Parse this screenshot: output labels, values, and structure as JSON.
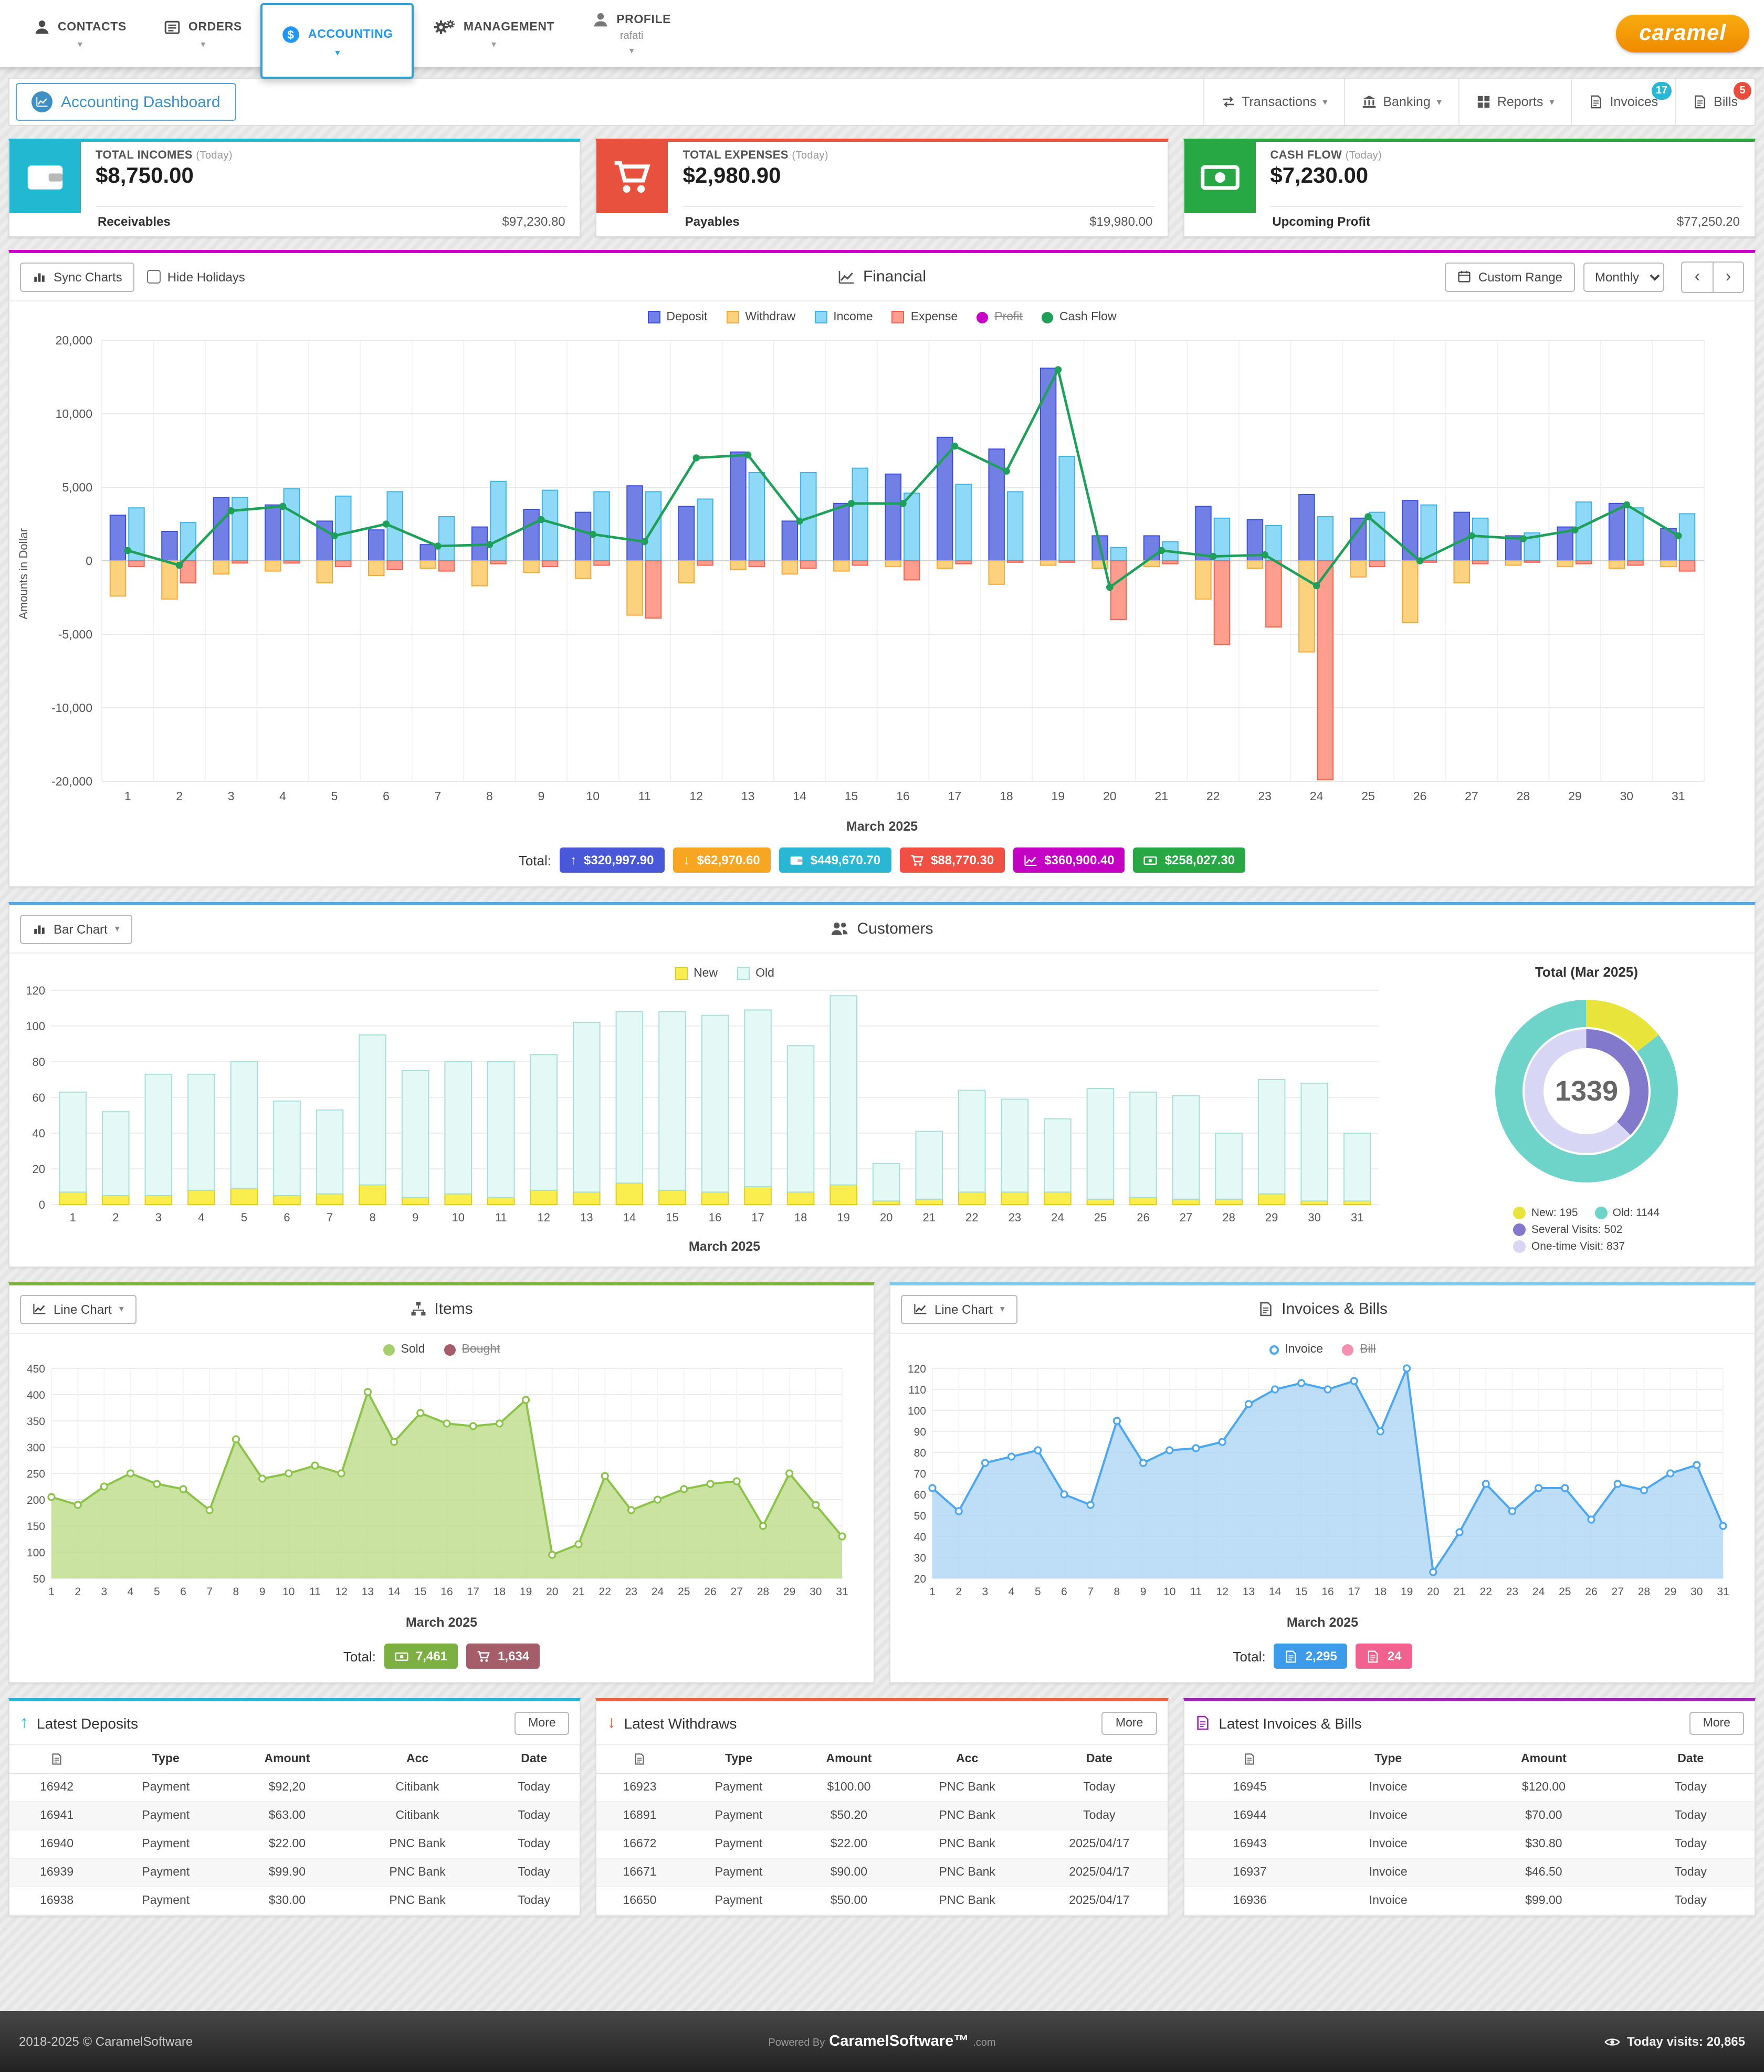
{
  "brand": "caramel",
  "nav": {
    "contacts": "CONTACTS",
    "orders": "ORDERS",
    "accounting": "ACCOUNTING",
    "management": "MANAGEMENT",
    "profile": "PROFILE",
    "profile_user": "rafati"
  },
  "toolbar": {
    "dashboard_tab": "Accounting Dashboard",
    "transactions": "Transactions",
    "banking": "Banking",
    "reports": "Reports",
    "invoices": "Invoices",
    "invoices_badge": "17",
    "bills": "Bills",
    "bills_badge": "5"
  },
  "stats": [
    {
      "title": "TOTAL INCOMES",
      "period": "(Today)",
      "value": "$8,750.00",
      "sub_label": "Receivables",
      "sub_value": "$97,230.80",
      "color": "#22b8d1"
    },
    {
      "title": "TOTAL EXPENSES",
      "period": "(Today)",
      "value": "$2,980.90",
      "sub_label": "Payables",
      "sub_value": "$19,980.00",
      "color": "#e8513d"
    },
    {
      "title": "CASH FLOW",
      "period": "(Today)",
      "value": "$7,230.00",
      "sub_label": "Upcoming Profit",
      "sub_value": "$77,250.20",
      "color": "#28a745"
    }
  ],
  "financial": {
    "sync_charts": "Sync Charts",
    "hide_holidays": "Hide Holidays",
    "title": "Financial",
    "custom_range": "Custom Range",
    "range_selected": "Monthly",
    "prev": "‹",
    "next": "›",
    "legend": [
      {
        "label": "Deposit"
      },
      {
        "label": "Withdraw"
      },
      {
        "label": "Income"
      },
      {
        "label": "Expense"
      },
      {
        "label": "Profit",
        "struck": true
      },
      {
        "label": "Cash Flow"
      }
    ],
    "ylabel": "Amounts in Dollar",
    "xlabel": "March 2025",
    "total_label": "Total:",
    "totals": [
      {
        "value": "$320,997.90",
        "color": "#4958d9",
        "icon": "arrow-up"
      },
      {
        "value": "$62,970.60",
        "color": "#f6a623",
        "icon": "arrow-down"
      },
      {
        "value": "$449,670.70",
        "color": "#29b7d3",
        "icon": "wallet"
      },
      {
        "value": "$88,770.30",
        "color": "#ef5043",
        "icon": "cart"
      },
      {
        "value": "$360,900.40",
        "color": "#c400c4",
        "icon": "chart"
      },
      {
        "value": "$258,027.30",
        "color": "#28a745",
        "icon": "money"
      }
    ]
  },
  "customers": {
    "chart_type_selector": "Bar Chart",
    "title": "Customers",
    "legend": [
      "New",
      "Old"
    ],
    "xlabel": "March 2025",
    "donut_title": "Total (Mar 2025)",
    "donut_total": "1339"
  },
  "items": {
    "chart_type_selector": "Line Chart",
    "title": "Items",
    "legend": [
      "Sold",
      "Bought"
    ],
    "xlabel": "March 2025",
    "total_label": "Total:",
    "sold_total": "7,461",
    "bought_total": "1,634"
  },
  "invoices_bills": {
    "chart_type_selector": "Line Chart",
    "title": "Invoices & Bills",
    "legend": [
      "Invoice",
      "Bill"
    ],
    "xlabel": "March 2025",
    "total_label": "Total:",
    "invoice_total": "2,295",
    "bill_total": "24"
  },
  "tables": [
    {
      "title": "Latest Deposits",
      "more": "More",
      "accent": "#29b7d3",
      "columns": [
        "",
        "Type",
        "Amount",
        "Acc",
        "Date"
      ],
      "rows": [
        [
          "16942",
          "Payment",
          "$92,20",
          "Citibank",
          "Today"
        ],
        [
          "16941",
          "Payment",
          "$63.00",
          "Citibank",
          "Today"
        ],
        [
          "16940",
          "Payment",
          "$22.00",
          "PNC Bank",
          "Today"
        ],
        [
          "16939",
          "Payment",
          "$99.90",
          "PNC Bank",
          "Today"
        ],
        [
          "16938",
          "Payment",
          "$30.00",
          "PNC Bank",
          "Today"
        ]
      ]
    },
    {
      "title": "Latest Withdraws",
      "more": "More",
      "accent": "#ef6145",
      "columns": [
        "",
        "Type",
        "Amount",
        "Acc",
        "Date"
      ],
      "rows": [
        [
          "16923",
          "Payment",
          "$100.00",
          "PNC Bank",
          "Today"
        ],
        [
          "16891",
          "Payment",
          "$50.20",
          "PNC Bank",
          "Today"
        ],
        [
          "16672",
          "Payment",
          "$22.00",
          "PNC Bank",
          "2025/04/17"
        ],
        [
          "16671",
          "Payment",
          "$90.00",
          "PNC Bank",
          "2025/04/17"
        ],
        [
          "16650",
          "Payment",
          "$50.00",
          "PNC Bank",
          "2025/04/17"
        ]
      ]
    },
    {
      "title": "Latest Invoices & Bills",
      "more": "More",
      "accent": "#9c27b0",
      "columns": [
        "",
        "Type",
        "Amount",
        "Date"
      ],
      "rows": [
        [
          "16945",
          "Invoice",
          "$120.00",
          "Today"
        ],
        [
          "16944",
          "Invoice",
          "$70.00",
          "Today"
        ],
        [
          "16943",
          "Invoice",
          "$30.80",
          "Today"
        ],
        [
          "16937",
          "Invoice",
          "$46.50",
          "Today"
        ],
        [
          "16936",
          "Invoice",
          "$99.00",
          "Today"
        ]
      ]
    }
  ],
  "footer": {
    "copyright": "2018-2025 © CaramelSoftware",
    "powered_prefix": "Powered By",
    "powered_brand": "CaramelSoftware™",
    "powered_suffix": ".com",
    "visits": "Today visits: 20,865"
  },
  "chart_data": [
    {
      "id": "financial",
      "type": "bar+line",
      "title": "Financial",
      "xlabel": "March 2025",
      "ylabel": "Amounts in Dollar",
      "x": [
        1,
        2,
        3,
        4,
        5,
        6,
        7,
        8,
        9,
        10,
        11,
        12,
        13,
        14,
        15,
        16,
        17,
        18,
        19,
        20,
        21,
        22,
        23,
        24,
        25,
        26,
        27,
        28,
        29,
        30,
        31
      ],
      "y_ticks": [
        20000,
        10000,
        5000,
        0,
        -5000,
        -10000,
        -20000
      ],
      "series": [
        {
          "name": "Deposit",
          "type": "bar",
          "color": "#7280e6",
          "border": "#3a50d9",
          "values": [
            3100,
            2000,
            4300,
            3800,
            2700,
            2100,
            1100,
            2300,
            3500,
            3300,
            5100,
            3700,
            7400,
            2700,
            3900,
            5900,
            8400,
            7600,
            16200,
            1700,
            1700,
            3700,
            2800,
            4500,
            2900,
            4100,
            3300,
            1700,
            2300,
            3900,
            2200
          ]
        },
        {
          "name": "Withdraw",
          "type": "bar",
          "color": "#fcd27f",
          "border": "#f0a93c",
          "values": [
            -2400,
            -2600,
            -900,
            -700,
            -1500,
            -1000,
            -500,
            -1700,
            -800,
            -1200,
            -3700,
            -1500,
            -600,
            -900,
            -700,
            -400,
            -500,
            -1600,
            -300,
            -500,
            -400,
            -2600,
            -500,
            -6200,
            -1100,
            -4200,
            -1500,
            -300,
            -400,
            -500,
            -400
          ]
        },
        {
          "name": "Income",
          "type": "bar",
          "color": "#8fd9f8",
          "border": "#3fb3e8",
          "values": [
            3600,
            2600,
            4300,
            4900,
            4400,
            4700,
            3000,
            5400,
            4800,
            4700,
            4700,
            4200,
            6000,
            6000,
            6300,
            4600,
            5200,
            4700,
            7100,
            900,
            1300,
            2900,
            2400,
            3000,
            3300,
            3800,
            2900,
            1900,
            4000,
            3600,
            3200
          ]
        },
        {
          "name": "Expense",
          "type": "bar",
          "color": "#ff9d8f",
          "border": "#f06352",
          "values": [
            -400,
            -1500,
            -150,
            -150,
            -400,
            -600,
            -700,
            -200,
            -400,
            -300,
            -3900,
            -300,
            -400,
            -500,
            -300,
            -1300,
            -200,
            -100,
            -100,
            -4000,
            -200,
            -5700,
            -4500,
            -19800,
            -400,
            -100,
            -200,
            -100,
            -200,
            -300,
            -700
          ]
        },
        {
          "name": "Cash Flow",
          "type": "line",
          "color": "#1fa05a",
          "values": [
            700,
            -300,
            3400,
            3700,
            1700,
            2500,
            1000,
            1100,
            2800,
            1800,
            1300,
            7000,
            7200,
            2700,
            3900,
            3900,
            7800,
            6100,
            16000,
            -1800,
            700,
            300,
            400,
            -1700,
            3000,
            0,
            1700,
            1500,
            2100,
            3800,
            1700
          ]
        }
      ],
      "hidden_series": [
        "Profit"
      ]
    },
    {
      "id": "customers",
      "type": "stacked-bar",
      "title": "Customers",
      "xlabel": "March 2025",
      "categories": [
        1,
        2,
        3,
        4,
        5,
        6,
        7,
        8,
        9,
        10,
        11,
        12,
        13,
        14,
        15,
        16,
        17,
        18,
        19,
        20,
        21,
        22,
        23,
        24,
        25,
        26,
        27,
        28,
        29,
        30,
        31
      ],
      "y_ticks": [
        0,
        20,
        40,
        60,
        80,
        100,
        120
      ],
      "series": [
        {
          "name": "New",
          "color": "#f9ee4e",
          "border": "#e0cd22",
          "values": [
            7,
            5,
            5,
            8,
            9,
            5,
            6,
            11,
            4,
            6,
            4,
            8,
            7,
            12,
            8,
            7,
            10,
            7,
            11,
            2,
            3,
            7,
            7,
            7,
            3,
            4,
            3,
            3,
            6,
            2,
            2
          ]
        },
        {
          "name": "Old",
          "color": "#e4f8f5",
          "border": "#a8ded8",
          "values": [
            56,
            47,
            68,
            65,
            71,
            53,
            47,
            84,
            71,
            74,
            76,
            76,
            95,
            96,
            100,
            99,
            99,
            82,
            106,
            21,
            38,
            57,
            52,
            41,
            62,
            59,
            58,
            37,
            64,
            66,
            38
          ]
        }
      ]
    },
    {
      "id": "customers_donut",
      "type": "donut",
      "title": "Total (Mar 2025)",
      "center": "1339",
      "rings": [
        {
          "segments": [
            {
              "label": "New: 195",
              "value": 195,
              "color": "#e9e43c"
            },
            {
              "label": "Old: 1144",
              "value": 1144,
              "color": "#6ed3c8"
            }
          ]
        },
        {
          "segments": [
            {
              "label": "Several Visits: 502",
              "value": 502,
              "color": "#8278cc"
            },
            {
              "label": "One-time Visit: 837",
              "value": 837,
              "color": "#d7d7f5"
            }
          ]
        }
      ]
    },
    {
      "id": "items",
      "type": "area",
      "title": "Items",
      "xlabel": "March 2025",
      "x": [
        1,
        2,
        3,
        4,
        5,
        6,
        7,
        8,
        9,
        10,
        11,
        12,
        13,
        14,
        15,
        16,
        17,
        18,
        19,
        20,
        21,
        22,
        23,
        24,
        25,
        26,
        27,
        28,
        29,
        30,
        31
      ],
      "y_ticks": [
        50,
        100,
        150,
        200,
        250,
        300,
        350,
        400,
        450
      ],
      "series": [
        {
          "name": "Sold",
          "color": "#8bc34a",
          "fill": "#bedc8a",
          "values": [
            205,
            190,
            225,
            250,
            230,
            220,
            180,
            315,
            240,
            250,
            265,
            250,
            405,
            310,
            365,
            345,
            340,
            345,
            390,
            95,
            115,
            245,
            180,
            200,
            220,
            230,
            235,
            150,
            250,
            190,
            130
          ]
        }
      ],
      "hidden_series": [
        "Bought"
      ]
    },
    {
      "id": "invoices",
      "type": "area",
      "title": "Invoices & Bills",
      "xlabel": "March 2025",
      "x": [
        1,
        2,
        3,
        4,
        5,
        6,
        7,
        8,
        9,
        10,
        11,
        12,
        13,
        14,
        15,
        16,
        17,
        18,
        19,
        20,
        21,
        22,
        23,
        24,
        25,
        26,
        27,
        28,
        29,
        30,
        31
      ],
      "y_ticks": [
        20,
        30,
        40,
        50,
        60,
        70,
        80,
        90,
        100,
        110,
        120
      ],
      "series": [
        {
          "name": "Invoice",
          "color": "#4da6f0",
          "fill": "#aed6f6",
          "values": [
            63,
            52,
            75,
            78,
            81,
            60,
            55,
            95,
            75,
            81,
            82,
            85,
            103,
            110,
            113,
            110,
            114,
            90,
            120,
            23,
            42,
            65,
            52,
            63,
            63,
            48,
            65,
            62,
            70,
            74,
            45
          ]
        }
      ],
      "hidden_series": [
        "Bill"
      ]
    }
  ]
}
